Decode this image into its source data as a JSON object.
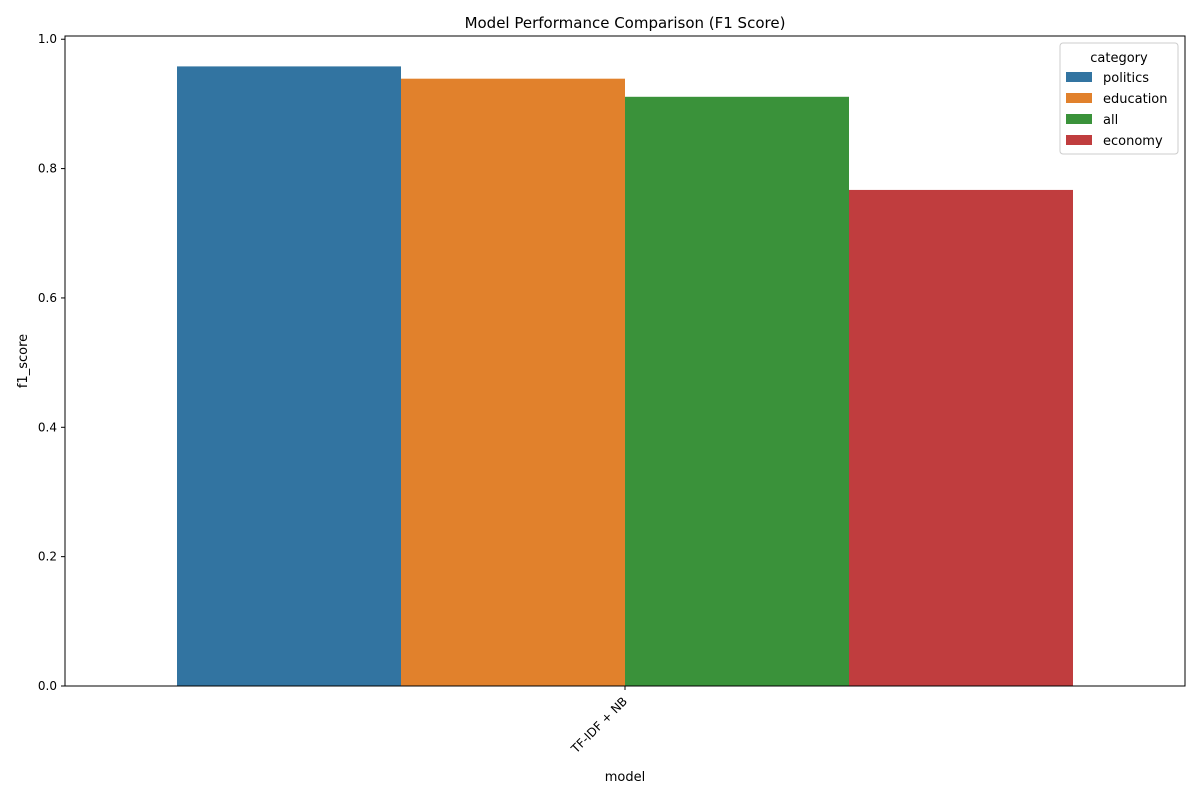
{
  "chart_data": {
    "type": "bar",
    "title": "Model Performance Comparison (F1 Score)",
    "xlabel": "model",
    "ylabel": "f1_score",
    "categories": [
      "TF-IDF + NB"
    ],
    "series": [
      {
        "name": "politics",
        "values": [
          0.958
        ],
        "color": "#3274a1"
      },
      {
        "name": "education",
        "values": [
          0.939
        ],
        "color": "#e1812c"
      },
      {
        "name": "all",
        "values": [
          0.911
        ],
        "color": "#3a923a"
      },
      {
        "name": "economy",
        "values": [
          0.767
        ],
        "color": "#c03d3e"
      }
    ],
    "ylim": [
      0.0,
      1.005
    ],
    "yticks": [
      0.0,
      0.2,
      0.4,
      0.6,
      0.8,
      1.0
    ],
    "ytick_labels": [
      "0.0",
      "0.2",
      "0.4",
      "0.6",
      "0.8",
      "1.0"
    ],
    "grid": false,
    "legend": {
      "title": "category",
      "placement": "top-right"
    }
  }
}
